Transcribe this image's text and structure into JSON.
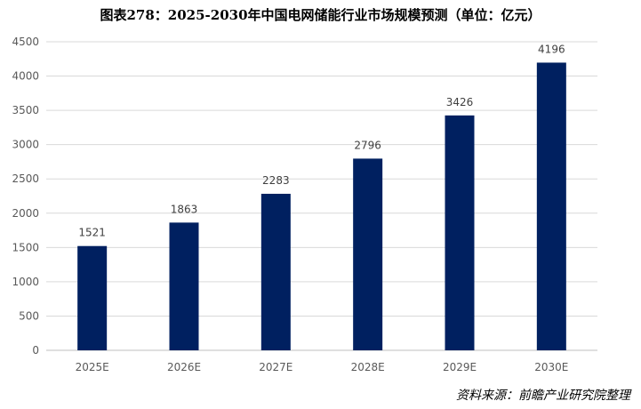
{
  "chart_data": {
    "type": "bar",
    "title": "图表278：2025-2030年中国电网储能行业市场规模预测（单位：亿元）",
    "categories": [
      "2025E",
      "2026E",
      "2027E",
      "2028E",
      "2029E",
      "2030E"
    ],
    "values": [
      1521,
      1863,
      2283,
      2796,
      3426,
      4196
    ],
    "ylim": [
      0,
      4500
    ],
    "yticks": [
      0,
      500,
      1000,
      1500,
      2000,
      2500,
      3000,
      3500,
      4000,
      4500
    ],
    "grid": true,
    "bar_color": "#002060",
    "source": "资料来源：前瞻产业研究院整理"
  }
}
